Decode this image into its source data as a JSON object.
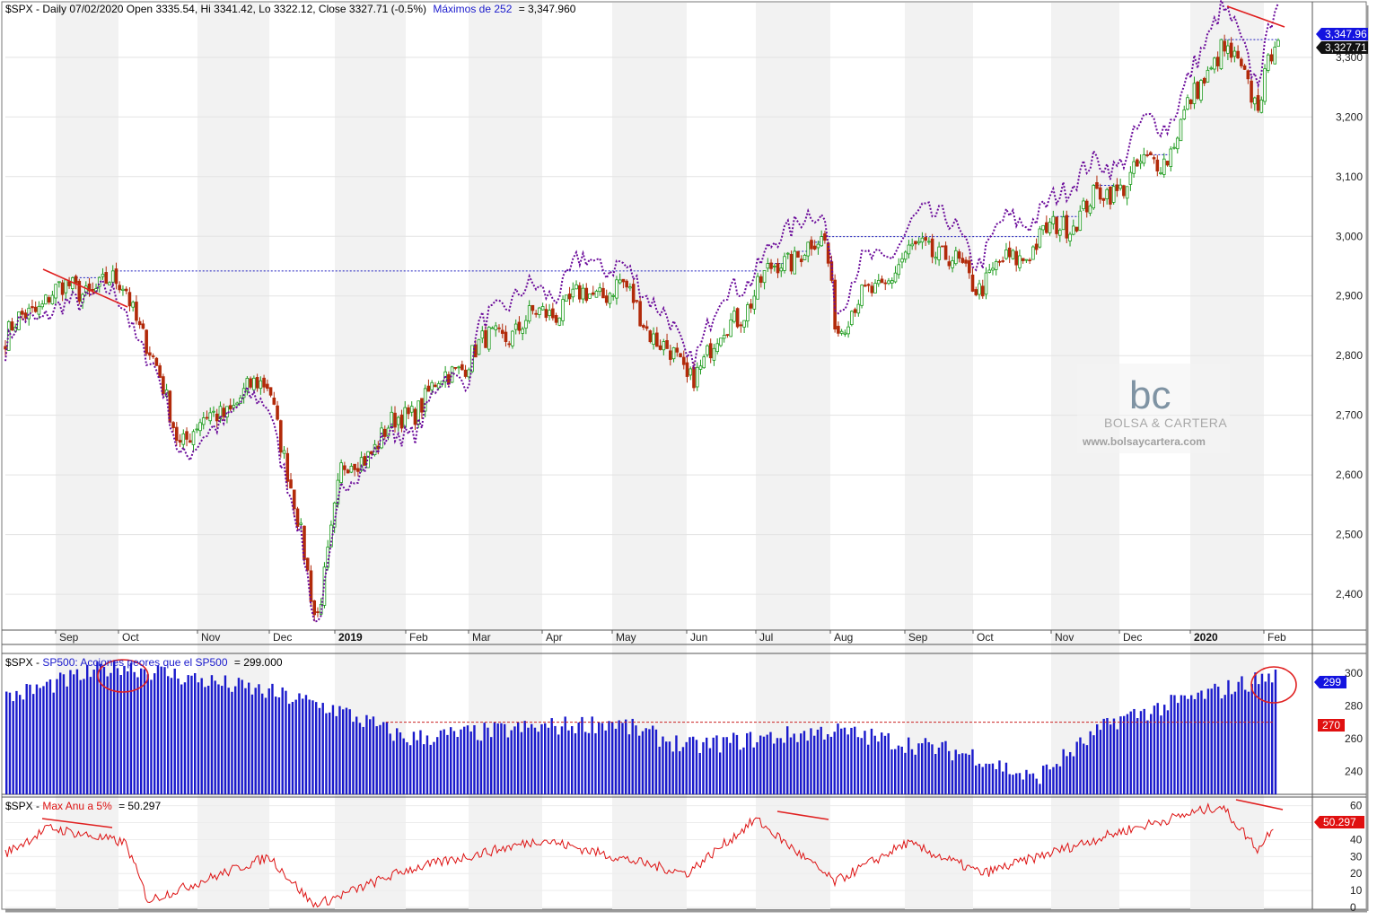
{
  "panel1": {
    "ticker": "$SPX",
    "header": "$SPX - Daily 07/02/2020 Open 3335.54, Hi 3341.42, Lo 3322.12, Close 3327.71 (-0.5%)",
    "indicator_label": "Máximos de 252",
    "indicator_value": "= 3,347.960",
    "price_badge_high": "3,347.96",
    "price_badge_close": "3,327.71",
    "y_ticks": [
      "3,300",
      "3,200",
      "3,100",
      "3,000",
      "2,900",
      "2,800",
      "2,700",
      "2,600",
      "2,500",
      "2,400"
    ],
    "months": [
      {
        "label": "Sep",
        "bold": false
      },
      {
        "label": "Oct",
        "bold": false
      },
      {
        "label": "Nov",
        "bold": false
      },
      {
        "label": "Dec",
        "bold": false
      },
      {
        "label": "2019",
        "bold": true
      },
      {
        "label": "Feb",
        "bold": false
      },
      {
        "label": "Mar",
        "bold": false
      },
      {
        "label": "Apr",
        "bold": false
      },
      {
        "label": "May",
        "bold": false
      },
      {
        "label": "Jun",
        "bold": false
      },
      {
        "label": "Jul",
        "bold": false
      },
      {
        "label": "Aug",
        "bold": false
      },
      {
        "label": "Sep",
        "bold": false
      },
      {
        "label": "Oct",
        "bold": false
      },
      {
        "label": "Nov",
        "bold": false
      },
      {
        "label": "Dec",
        "bold": false
      },
      {
        "label": "2020",
        "bold": true
      },
      {
        "label": "Feb",
        "bold": false
      }
    ]
  },
  "panel2": {
    "ticker": "$SPX",
    "label": "SP500: Acciones peores que el SP500",
    "value": "= 299.000",
    "badge_value": "299",
    "badge_reference": "270",
    "y_ticks": [
      "300",
      "280",
      "260",
      "240"
    ]
  },
  "panel3": {
    "ticker": "$SPX",
    "label": "Max Anu a 5%",
    "value": "= 50.297",
    "badge_value": "50.297",
    "y_ticks": [
      "60",
      "50",
      "40",
      "30",
      "20",
      "10",
      "0"
    ]
  },
  "watermark": {
    "logo": "bc",
    "name": "BOLSA & CARTERA",
    "url": "www.bolsaycartera.com"
  },
  "colors": {
    "up_candle": "#1a9a1a",
    "down_candle": "#b22a0a",
    "breadth_line": "#6a0a9a",
    "high_line": "#2020c0",
    "bars": "#1a1acc",
    "drawdown_line": "#dd1111",
    "annotation": "#e02020"
  },
  "chart_data": [
    {
      "type": "candlestick",
      "title": "$SPX - Daily 07/02/2020",
      "ohlc_last": {
        "open": 3335.54,
        "high": 3341.42,
        "low": 3322.12,
        "close": 3327.71,
        "change_pct": -0.5
      },
      "indicator": {
        "name": "Máximos de 252",
        "value": 3347.96
      },
      "ylim": [
        2340,
        3390
      ],
      "x_range": [
        "2018-08",
        "2020-02"
      ],
      "close_path": [
        {
          "x": "2018-08",
          "y": 2830
        },
        {
          "x": "2018-09",
          "y": 2905
        },
        {
          "x": "2018-10",
          "y": 2920
        },
        {
          "x": "2018-11",
          "y": 2660
        },
        {
          "x": "2018-12",
          "y": 2760
        },
        {
          "x": "2018-12",
          "y": 2360
        },
        {
          "x": "2019-01",
          "y": 2600
        },
        {
          "x": "2019-02",
          "y": 2700
        },
        {
          "x": "2019-03",
          "y": 2810
        },
        {
          "x": "2019-04",
          "y": 2870
        },
        {
          "x": "2019-05",
          "y": 2920
        },
        {
          "x": "2019-06",
          "y": 2760
        },
        {
          "x": "2019-07",
          "y": 2960
        },
        {
          "x": "2019-08",
          "y": 2990
        },
        {
          "x": "2019-08",
          "y": 2850
        },
        {
          "x": "2019-09",
          "y": 2990
        },
        {
          "x": "2019-10",
          "y": 2920
        },
        {
          "x": "2019-11",
          "y": 3080
        },
        {
          "x": "2019-12",
          "y": 3140
        },
        {
          "x": "2020-01",
          "y": 3320
        },
        {
          "x": "2020-02",
          "y": 3228
        },
        {
          "x": "2020-02",
          "y": 3328
        }
      ],
      "series": [
        {
          "name": "$SPX"
        },
        {
          "name": "Máximos de 252"
        }
      ],
      "grid": true
    },
    {
      "type": "bar",
      "title": "SP500: Acciones peores que el SP500",
      "ylim": [
        226,
        312
      ],
      "last_value": 299,
      "reference_line": 270,
      "profile": [
        {
          "x": "2018-08",
          "y": 285
        },
        {
          "x": "2018-10",
          "y": 305
        },
        {
          "x": "2018-12",
          "y": 288
        },
        {
          "x": "2019-01",
          "y": 278
        },
        {
          "x": "2019-02",
          "y": 260
        },
        {
          "x": "2019-04",
          "y": 267
        },
        {
          "x": "2019-05",
          "y": 270
        },
        {
          "x": "2019-06",
          "y": 255
        },
        {
          "x": "2019-08",
          "y": 265
        },
        {
          "x": "2019-10",
          "y": 250
        },
        {
          "x": "2019-11",
          "y": 235
        },
        {
          "x": "2019-12",
          "y": 271
        },
        {
          "x": "2020-01",
          "y": 285
        },
        {
          "x": "2020-02",
          "y": 299
        }
      ]
    },
    {
      "type": "line",
      "title": "Max Anu a 5%",
      "series": [
        {
          "name": "Max Anu a 5%"
        }
      ],
      "ylim": [
        0,
        63
      ],
      "last_value": 50.297,
      "profile": [
        {
          "x": "2018-08",
          "y": 32
        },
        {
          "x": "2018-09",
          "y": 47
        },
        {
          "x": "2018-10",
          "y": 38
        },
        {
          "x": "2018-10",
          "y": 4
        },
        {
          "x": "2018-12",
          "y": 30
        },
        {
          "x": "2018-12",
          "y": 1
        },
        {
          "x": "2019-02",
          "y": 22
        },
        {
          "x": "2019-04",
          "y": 40
        },
        {
          "x": "2019-06",
          "y": 20
        },
        {
          "x": "2019-07",
          "y": 52
        },
        {
          "x": "2019-08",
          "y": 15
        },
        {
          "x": "2019-09",
          "y": 38
        },
        {
          "x": "2019-10",
          "y": 20
        },
        {
          "x": "2019-12",
          "y": 45
        },
        {
          "x": "2020-01",
          "y": 60
        },
        {
          "x": "2020-02",
          "y": 34
        },
        {
          "x": "2020-02",
          "y": 50
        }
      ]
    }
  ]
}
